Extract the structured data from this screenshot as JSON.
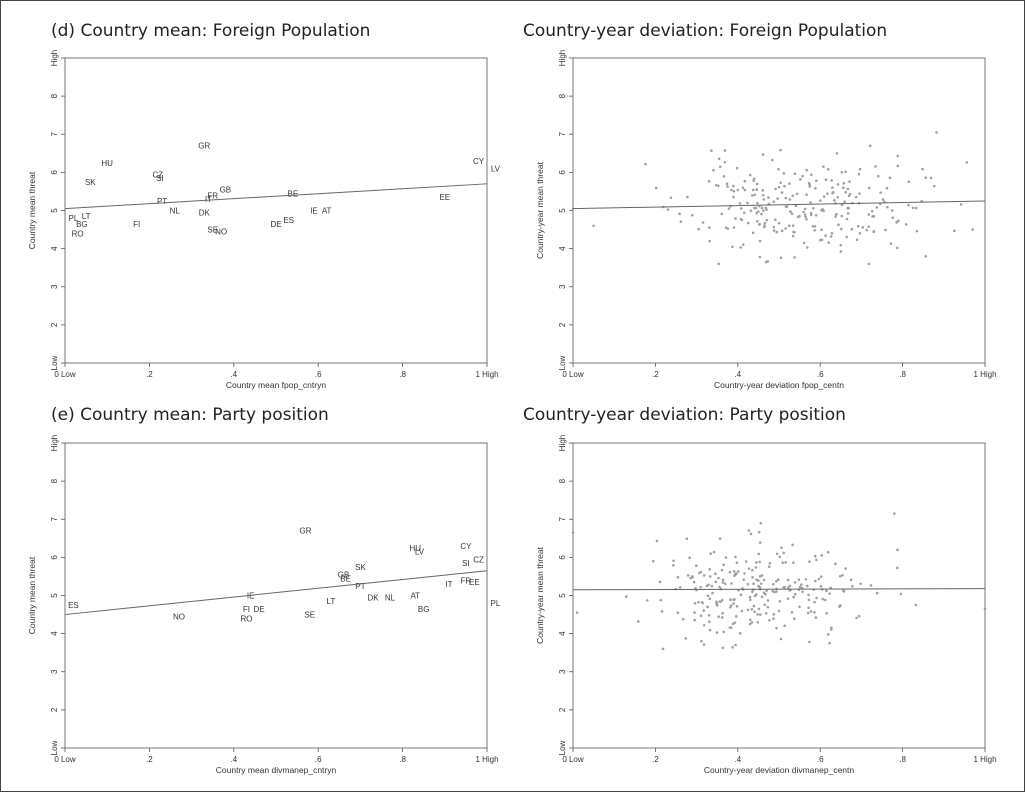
{
  "chart_data": [
    {
      "type": "scatter",
      "title": "(d) Country mean: Foreign Population",
      "xlabel": "Country mean fpop_cntryn",
      "ylabel": "Country mean threat",
      "xlim": [
        0,
        1
      ],
      "ylim": [
        1,
        9
      ],
      "xticks": [
        "0 Low",
        ".2",
        ".4",
        ".6",
        ".8",
        "1 High"
      ],
      "yticks": [
        "Low",
        "2",
        "3",
        "4",
        "5",
        "6",
        "7",
        "8",
        "High"
      ],
      "grid": false,
      "fit_line": {
        "x": [
          0,
          1
        ],
        "y": [
          5.05,
          5.7
        ]
      },
      "labeled_points": [
        {
          "label": "GR",
          "x": 0.33,
          "y": 6.7
        },
        {
          "label": "HU",
          "x": 0.1,
          "y": 6.25
        },
        {
          "label": "CZ",
          "x": 0.22,
          "y": 5.95
        },
        {
          "label": "SI",
          "x": 0.225,
          "y": 5.85
        },
        {
          "label": "SK",
          "x": 0.06,
          "y": 5.75
        },
        {
          "label": "GB",
          "x": 0.38,
          "y": 5.55
        },
        {
          "label": "FR",
          "x": 0.35,
          "y": 5.4
        },
        {
          "label": "IT",
          "x": 0.34,
          "y": 5.3
        },
        {
          "label": "BE",
          "x": 0.54,
          "y": 5.45
        },
        {
          "label": "PT",
          "x": 0.23,
          "y": 5.25
        },
        {
          "label": "NL",
          "x": 0.26,
          "y": 5.0
        },
        {
          "label": "DK",
          "x": 0.33,
          "y": 4.95
        },
        {
          "label": "PL",
          "x": 0.02,
          "y": 4.8
        },
        {
          "label": "LT",
          "x": 0.05,
          "y": 4.85
        },
        {
          "label": "BG",
          "x": 0.04,
          "y": 4.65
        },
        {
          "label": "FI",
          "x": 0.17,
          "y": 4.65
        },
        {
          "label": "RO",
          "x": 0.03,
          "y": 4.4
        },
        {
          "label": "SE",
          "x": 0.35,
          "y": 4.5
        },
        {
          "label": "NO",
          "x": 0.37,
          "y": 4.45
        },
        {
          "label": "DE",
          "x": 0.5,
          "y": 4.65
        },
        {
          "label": "ES",
          "x": 0.53,
          "y": 4.75
        },
        {
          "label": "IE",
          "x": 0.59,
          "y": 5.0
        },
        {
          "label": "AT",
          "x": 0.62,
          "y": 5.0
        },
        {
          "label": "EE",
          "x": 0.9,
          "y": 5.35
        },
        {
          "label": "CY",
          "x": 0.98,
          "y": 6.3
        },
        {
          "label": "LV",
          "x": 1.02,
          "y": 6.1
        }
      ]
    },
    {
      "type": "scatter",
      "title": "Country-year deviation: Foreign Population",
      "xlabel": "Country-year deviation fpop_centn",
      "ylabel": "Country-year mean threat",
      "xlim": [
        0,
        1
      ],
      "ylim": [
        1,
        9
      ],
      "xticks": [
        "0 Low",
        ".2",
        ".4",
        ".6",
        ".8",
        "1 High"
      ],
      "yticks": [
        "Low",
        "2",
        "3",
        "4",
        "5",
        "6",
        "7",
        "8",
        "High"
      ],
      "grid": false,
      "fit_line": {
        "x": [
          0,
          1
        ],
        "y": [
          5.05,
          5.25
        ]
      },
      "cloud": {
        "n": 260,
        "x_center": 0.55,
        "x_sd": 0.14,
        "y_center": 5.1,
        "y_sd": 0.65
      }
    },
    {
      "type": "scatter",
      "title": "(e) Country mean: Party position",
      "xlabel": "Country mean divmanep_cntryn",
      "ylabel": "Country mean threat",
      "xlim": [
        0,
        1
      ],
      "ylim": [
        1,
        9
      ],
      "xticks": [
        "0 Low",
        ".2",
        ".4",
        ".6",
        ".8",
        "1 High"
      ],
      "yticks": [
        "Low",
        "2",
        "3",
        "4",
        "5",
        "6",
        "7",
        "8",
        "High"
      ],
      "grid": false,
      "fit_line": {
        "x": [
          0,
          1
        ],
        "y": [
          4.5,
          5.65
        ]
      },
      "labeled_points": [
        {
          "label": "GR",
          "x": 0.57,
          "y": 6.7
        },
        {
          "label": "HU",
          "x": 0.83,
          "y": 6.25
        },
        {
          "label": "LV",
          "x": 0.84,
          "y": 6.15
        },
        {
          "label": "CY",
          "x": 0.95,
          "y": 6.3
        },
        {
          "label": "CZ",
          "x": 0.98,
          "y": 5.95
        },
        {
          "label": "SI",
          "x": 0.95,
          "y": 5.85
        },
        {
          "label": "SK",
          "x": 0.7,
          "y": 5.75
        },
        {
          "label": "GB",
          "x": 0.66,
          "y": 5.55
        },
        {
          "label": "BE",
          "x": 0.665,
          "y": 5.45
        },
        {
          "label": "FR",
          "x": 0.95,
          "y": 5.4
        },
        {
          "label": "EE",
          "x": 0.97,
          "y": 5.35
        },
        {
          "label": "IT",
          "x": 0.91,
          "y": 5.3
        },
        {
          "label": "PT",
          "x": 0.7,
          "y": 5.25
        },
        {
          "label": "AT",
          "x": 0.83,
          "y": 5.0
        },
        {
          "label": "NL",
          "x": 0.77,
          "y": 4.95
        },
        {
          "label": "DK",
          "x": 0.73,
          "y": 4.95
        },
        {
          "label": "LT",
          "x": 0.63,
          "y": 4.85
        },
        {
          "label": "BG",
          "x": 0.85,
          "y": 4.65
        },
        {
          "label": "PL",
          "x": 1.02,
          "y": 4.8
        },
        {
          "label": "ES",
          "x": 0.02,
          "y": 4.75
        },
        {
          "label": "IE",
          "x": 0.44,
          "y": 5.0
        },
        {
          "label": "FI",
          "x": 0.43,
          "y": 4.65
        },
        {
          "label": "DE",
          "x": 0.46,
          "y": 4.65
        },
        {
          "label": "RO",
          "x": 0.43,
          "y": 4.4
        },
        {
          "label": "SE",
          "x": 0.58,
          "y": 4.5
        },
        {
          "label": "NO",
          "x": 0.27,
          "y": 4.45
        }
      ]
    },
    {
      "type": "scatter",
      "title": "Country-year deviation: Party position",
      "xlabel": "Country-year deviation divmanep_centn",
      "ylabel": "Country-year mean threat",
      "xlim": [
        0,
        1
      ],
      "ylim": [
        1,
        9
      ],
      "xticks": [
        "0 Low",
        ".2",
        ".4",
        ".6",
        ".8",
        "1 High"
      ],
      "yticks": [
        "Low",
        "2",
        "3",
        "4",
        "5",
        "6",
        "7",
        "8",
        "High"
      ],
      "grid": false,
      "fit_line": {
        "x": [
          0,
          1
        ],
        "y": [
          5.15,
          5.18
        ]
      },
      "cloud": {
        "n": 260,
        "x_center": 0.45,
        "x_sd": 0.13,
        "y_center": 5.15,
        "y_sd": 0.6
      }
    }
  ]
}
